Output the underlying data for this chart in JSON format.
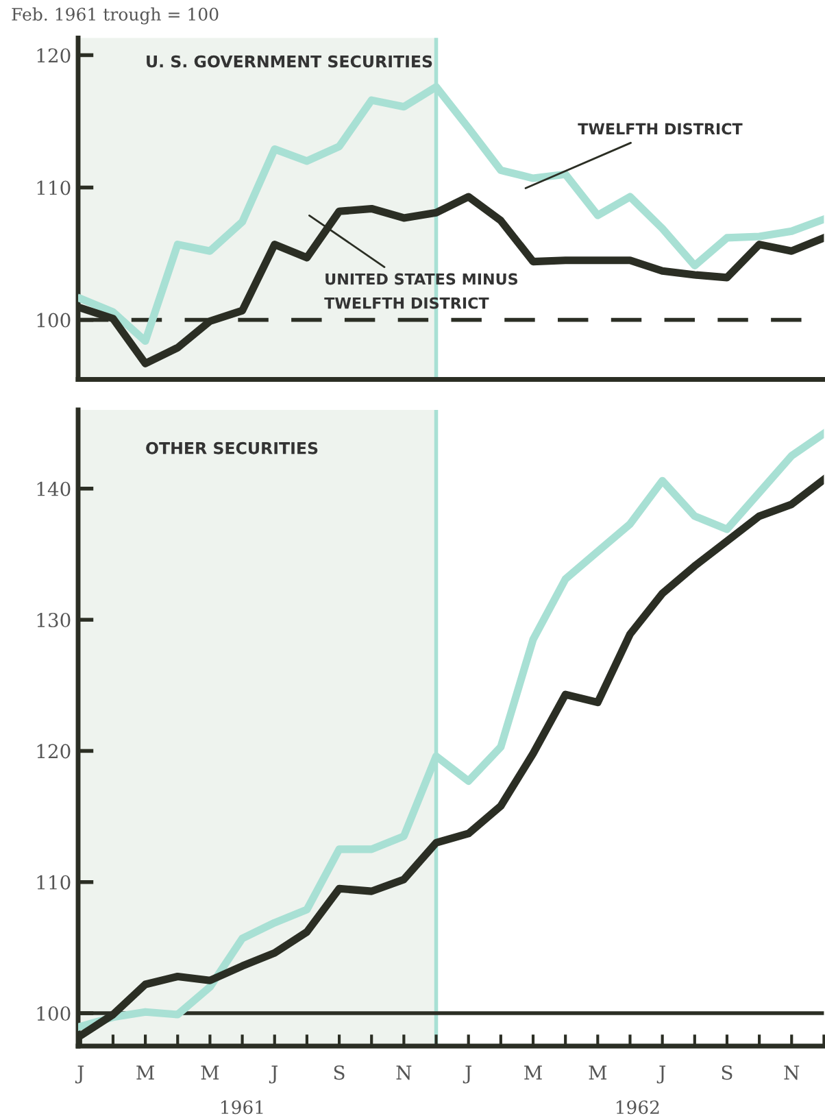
{
  "chart_data": [
    {
      "type": "line",
      "title": "U. S. GOVERNMENT SECURITIES",
      "ylabel": "Feb. 1961 trough = 100",
      "categories": [
        null,
        null,
        null,
        null,
        null,
        null,
        null,
        null,
        null,
        null,
        null,
        null,
        null,
        null,
        null,
        null,
        null,
        null,
        null,
        null,
        null,
        null,
        null,
        null
      ],
      "series": [
        {
          "color": "#a8e0d4",
          "values": [
            101.6,
            100.6,
            98.4,
            105.7,
            105.2,
            107.4,
            112.9,
            112.0,
            113.1,
            116.6,
            116.1,
            117.6,
            114.5,
            111.3,
            110.7,
            111.0,
            107.9,
            109.3,
            106.9,
            104.1,
            106.2,
            106.3,
            106.7,
            107.6
          ]
        },
        {
          "color": "#2b2e24",
          "values": [
            100.9,
            100.1,
            96.7,
            97.9,
            99.9,
            100.7,
            105.7,
            104.7,
            108.2,
            108.4,
            107.7,
            108.1,
            109.3,
            107.5,
            104.4,
            104.5,
            104.5,
            104.5,
            103.7,
            103.4,
            103.2,
            105.7,
            105.2,
            106.2
          ]
        }
      ],
      "annotations": [
        "TWELFTH DISTRICT",
        "UNITED STATES MINUS\nTWELFTH DISTRICT"
      ],
      "ylim": [
        95.5,
        121.3
      ],
      "yticks": [
        100,
        110,
        120
      ],
      "ref_lines": [
        {
          "axis": "y",
          "value": 100,
          "color": "#2b2e24",
          "line_style": "dashed"
        }
      ],
      "grid": false,
      "line_style": "solid",
      "marker": "none"
    },
    {
      "type": "line",
      "title": "OTHER SECURITIES",
      "categories": [
        "J",
        null,
        "M",
        null,
        "M",
        null,
        "J",
        null,
        "S",
        null,
        "N",
        null,
        "J",
        null,
        "M",
        null,
        "M",
        null,
        "J",
        null,
        "S",
        null,
        "N",
        null
      ],
      "series": [
        {
          "color": "#a8e0d4",
          "values": [
            99.0,
            99.7,
            100.1,
            99.9,
            102.0,
            105.7,
            106.9,
            107.9,
            112.5,
            112.5,
            113.5,
            119.6,
            117.7,
            120.3,
            128.5,
            133.1,
            135.2,
            137.3,
            140.6,
            137.9,
            136.9,
            139.7,
            142.5,
            144.2
          ]
        },
        {
          "color": "#2b2e24",
          "values": [
            98.3,
            99.9,
            102.2,
            102.8,
            102.5,
            103.6,
            104.6,
            106.2,
            109.5,
            109.3,
            110.2,
            113.0,
            113.7,
            115.8,
            119.8,
            124.3,
            123.7,
            128.9,
            132.0,
            134.1,
            136.0,
            137.9,
            138.8,
            140.7
          ]
        }
      ],
      "annotations": [
        "1961",
        "1962"
      ],
      "ylim": [
        97.5,
        146
      ],
      "yticks": [
        100,
        110,
        120,
        130,
        140
      ],
      "ref_lines": [
        {
          "axis": "y",
          "value": 100,
          "color": "#2b2e24",
          "line_style": "solid"
        }
      ],
      "grid": false,
      "line_style": "solid",
      "marker": "none"
    }
  ]
}
